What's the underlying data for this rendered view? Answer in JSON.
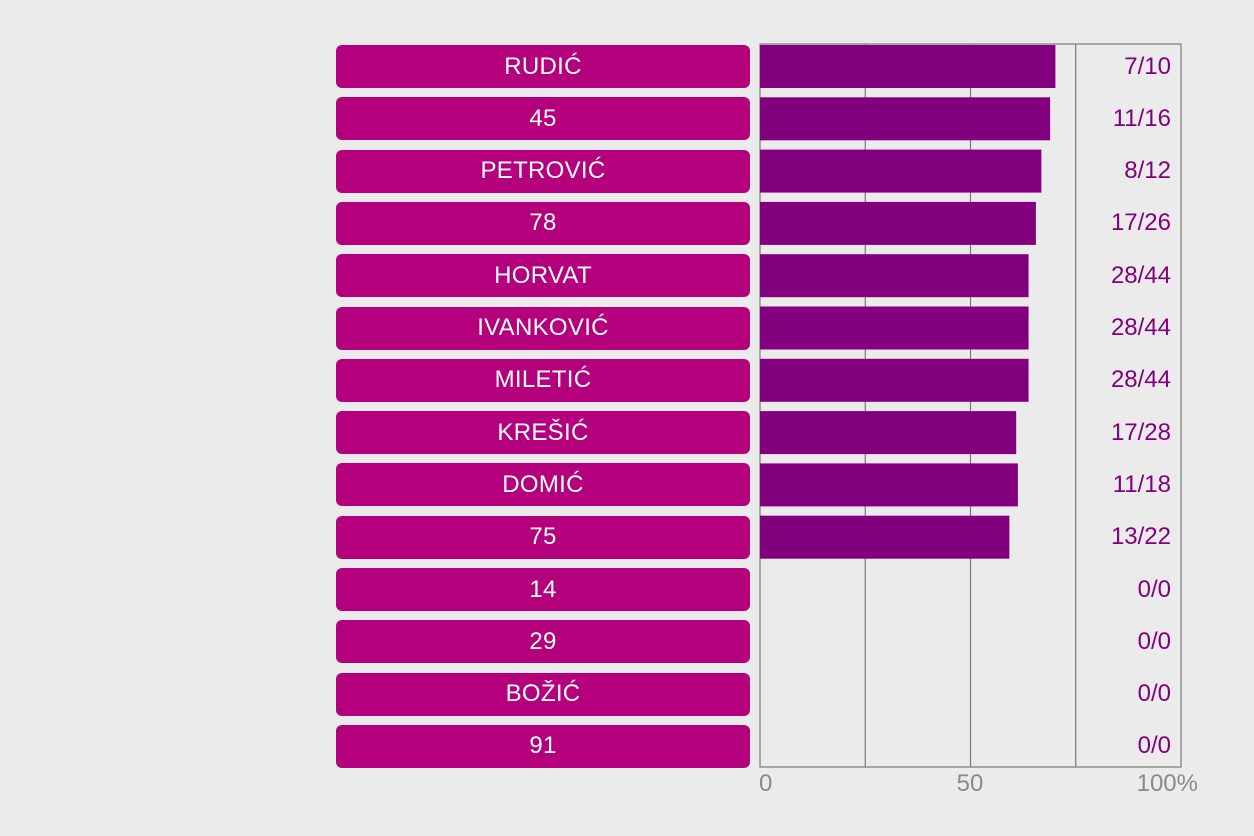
{
  "chart_data": {
    "type": "bar",
    "orientation": "horizontal",
    "categories": [
      "RUDIĆ",
      "45",
      "PETROVIĆ",
      "78",
      "HORVAT",
      "IVANKOVIĆ",
      "MILETIĆ",
      "KREŠIĆ",
      "DOMIĆ",
      "75",
      "14",
      "29",
      "BOŽIĆ",
      "91"
    ],
    "ratios": [
      "7/10",
      "11/16",
      "8/12",
      "17/26",
      "28/44",
      "28/44",
      "28/44",
      "17/28",
      "11/18",
      "13/22",
      "0/0",
      "0/0",
      "0/0",
      "0/0"
    ],
    "values": [
      70,
      68.75,
      66.67,
      65.38,
      63.64,
      63.64,
      63.64,
      60.71,
      61.11,
      59.09,
      0,
      0,
      0,
      0
    ],
    "xlim": [
      0,
      100
    ],
    "x_ticks": [
      "0",
      "50",
      "100%"
    ],
    "grid": true
  },
  "colors": {
    "background": "#ebebeb",
    "label_box": "#b5007e",
    "bar": "#82007d",
    "ratio_text": "#82007d",
    "grid": "#7a7a7a",
    "tick_text": "#8a8a8a"
  }
}
